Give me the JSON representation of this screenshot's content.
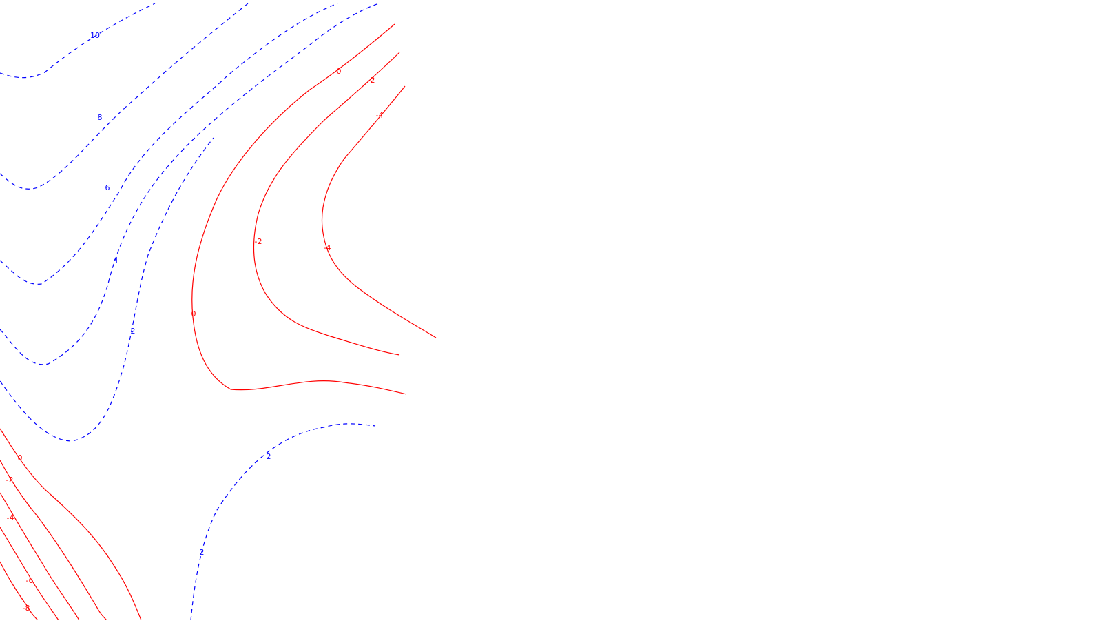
{
  "chart_data": {
    "type": "contour",
    "title": "",
    "xlabel": "",
    "ylabel": "",
    "colors": {
      "positive": "#0000ff",
      "negative": "#ff0000",
      "zero": "#ff0000"
    },
    "line_styles": {
      "positive": "dashed",
      "negative": "solid",
      "zero": "solid"
    },
    "contours": [
      {
        "level": 10,
        "label": "10",
        "sign": "positive"
      },
      {
        "level": 8,
        "label": "8",
        "sign": "positive"
      },
      {
        "level": 6,
        "label": "6",
        "sign": "positive"
      },
      {
        "level": 4,
        "label": "4",
        "sign": "positive"
      },
      {
        "level": 2,
        "label": "2",
        "sign": "positive"
      },
      {
        "level": 2,
        "label": "2",
        "sign": "positive"
      },
      {
        "level": 2,
        "label": "2",
        "sign": "positive"
      },
      {
        "level": 0,
        "label": "0",
        "sign": "zero"
      },
      {
        "level": 0,
        "label": "0",
        "sign": "zero"
      },
      {
        "level": 0,
        "label": "0",
        "sign": "zero"
      },
      {
        "level": -2,
        "label": "-2",
        "sign": "negative"
      },
      {
        "level": -2,
        "label": "-2",
        "sign": "negative"
      },
      {
        "level": -2,
        "label": "-2",
        "sign": "negative"
      },
      {
        "level": -4,
        "label": "-4",
        "sign": "negative"
      },
      {
        "level": -4,
        "label": "-4",
        "sign": "negative"
      },
      {
        "level": -4,
        "label": "-4",
        "sign": "negative"
      },
      {
        "level": -6,
        "label": "-6",
        "sign": "negative"
      },
      {
        "level": -8,
        "label": "-8",
        "sign": "negative"
      }
    ],
    "grid": false,
    "legend": "none"
  }
}
